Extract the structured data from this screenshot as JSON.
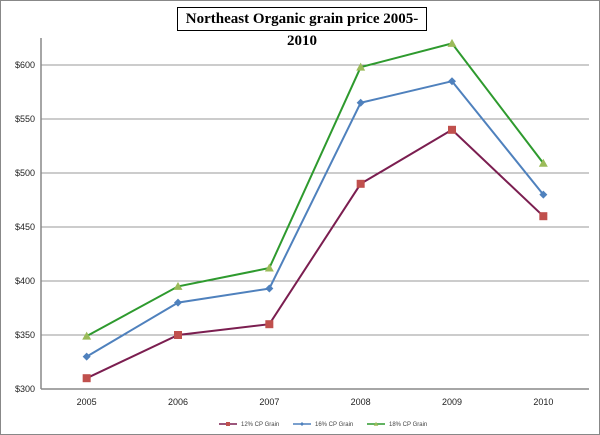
{
  "chart_data": {
    "type": "line",
    "title": "Northeast Organic grain price 2005-2010",
    "xlabel": "",
    "ylabel": "",
    "categories": [
      "2005",
      "2006",
      "2007",
      "2008",
      "2009",
      "2010"
    ],
    "ylim": [
      300,
      625
    ],
    "yticks": [
      300,
      350,
      400,
      450,
      500,
      550,
      600
    ],
    "ytick_labels": [
      "$300",
      "$350",
      "$400",
      "$450",
      "$500",
      "$550",
      "$600"
    ],
    "grid": true,
    "legend_position": "bottom",
    "series": [
      {
        "name": "12% CP Grain",
        "values": [
          310,
          350,
          360,
          490,
          540,
          460
        ],
        "line_color": "#7B1E50",
        "marker_color": "#C0504D",
        "marker": "square"
      },
      {
        "name": "16% CP Grain",
        "values": [
          330,
          380,
          393,
          565,
          585,
          480
        ],
        "line_color": "#4F81BD",
        "marker_color": "#4F81BD",
        "marker": "diamond"
      },
      {
        "name": "18% CP Grain",
        "values": [
          349,
          395,
          412,
          598,
          620,
          509
        ],
        "line_color": "#2E9A2E",
        "marker_color": "#9BBB59",
        "marker": "triangle"
      }
    ]
  }
}
